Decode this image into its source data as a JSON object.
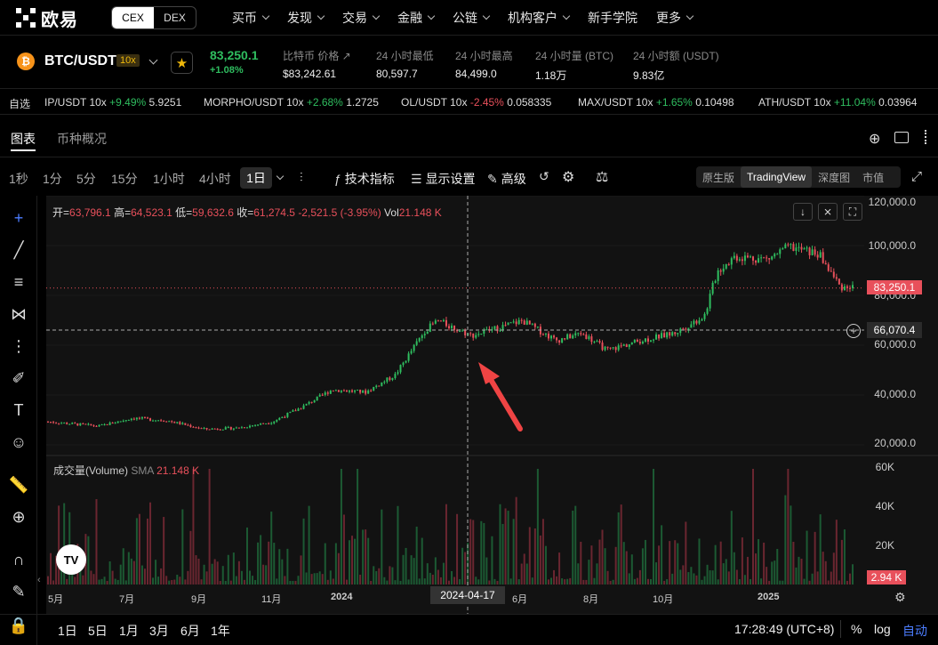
{
  "nav": {
    "logo": "欧易",
    "cex": "CEX",
    "dex": "DEX",
    "menu": [
      "买币",
      "发现",
      "交易",
      "金融",
      "公链",
      "机构客户",
      "新手学院",
      "更多"
    ],
    "menu_has_chevron": [
      true,
      true,
      true,
      true,
      true,
      true,
      false,
      true
    ]
  },
  "ticker": {
    "pair": "BTC/USDT",
    "leverage": "10x",
    "price": "83,250.1",
    "change": "+1.08%",
    "stats": [
      {
        "label": "比特币 价格",
        "value": "$83,242.61"
      },
      {
        "label": "24 小时最低",
        "value": "80,597.7"
      },
      {
        "label": "24 小时最高",
        "value": "84,499.0"
      },
      {
        "label": "24 小时量 (BTC)",
        "value": "1.18万"
      },
      {
        "label": "24 小时额 (USDT)",
        "value": "9.83亿"
      }
    ]
  },
  "scroll": {
    "fav_label": "自选",
    "items": [
      {
        "name": "IP/USDT 10x",
        "chg": "+9.49%",
        "dir": "p",
        "price": "5.9251"
      },
      {
        "name": "MORPHO/USDT 10x",
        "chg": "+2.68%",
        "dir": "p",
        "price": "1.2725"
      },
      {
        "name": "OL/USDT 10x",
        "chg": "-2.45%",
        "dir": "n",
        "price": "0.058335"
      },
      {
        "name": "MAX/USDT 10x",
        "chg": "+1.65%",
        "dir": "p",
        "price": "0.10498"
      },
      {
        "name": "ATH/USDT 10x",
        "chg": "+11.04%",
        "dir": "p",
        "price": "0.03964"
      }
    ]
  },
  "tabs": {
    "chart": "图表",
    "overview": "币种概况"
  },
  "toolbar": {
    "intervals": [
      "1秒",
      "1分",
      "5分",
      "15分",
      "1小时",
      "4小时"
    ],
    "active": "1日",
    "indicators": "技术指标",
    "display": "显示设置",
    "advanced": "高级",
    "views": [
      "原生版",
      "TradingView",
      "深度图",
      "市值"
    ],
    "active_view": "TradingView"
  },
  "ohlc": {
    "open_l": "开=",
    "open": "63,796.1",
    "high_l": "高=",
    "high": "64,523.1",
    "low_l": "低=",
    "low": "59,632.6",
    "close_l": "收=",
    "close": "61,274.5",
    "change": "-2,521.5 (-3.95%)",
    "vol_l": "Vol",
    "vol": "21.148 K"
  },
  "volume": {
    "label": "成交量(Volume)",
    "sma_l": "SMA",
    "sma": "21.148 K"
  },
  "axis": {
    "price_ticks": [
      "120,000.0",
      "100,000.0",
      "80,000.0",
      "60,000.0",
      "40,000.0",
      "20,000.0"
    ],
    "vol_ticks": [
      "60K",
      "40K",
      "20K"
    ],
    "x_ticks": [
      "5月",
      "7月",
      "9月",
      "11月",
      "2024",
      "6月",
      "8月",
      "10月",
      "2025"
    ],
    "last_price_tag": "83,250.1",
    "crosshair_price_tag": "66,070.4",
    "vol_tag": "2.94 K",
    "crosshair_date": "2024-04-17"
  },
  "bottom": {
    "ranges": [
      "1日",
      "5日",
      "1月",
      "3月",
      "6月",
      "1年"
    ],
    "time": "17:28:49 (UTC+8)",
    "pct": "%",
    "log": "log",
    "auto": "自动"
  },
  "colors": {
    "up": "#2fbd5f",
    "down": "#e8505b",
    "accent": "#f0b90b",
    "arrow": "#ef4444"
  },
  "chart_data": {
    "type": "candlestick",
    "series": [
      {
        "name": "BTC/USDT",
        "values": [
          [
            2023.3,
            29000
          ],
          [
            2023.42,
            27200
          ],
          [
            2023.5,
            30500
          ],
          [
            2023.58,
            29500
          ],
          [
            2023.67,
            26000
          ],
          [
            2023.75,
            26500
          ],
          [
            2023.83,
            29000
          ],
          [
            2023.9,
            35000
          ],
          [
            2023.97,
            42000
          ],
          [
            2024.05,
            41000
          ],
          [
            2024.12,
            48000
          ],
          [
            2024.19,
            66000
          ],
          [
            2024.22,
            70000
          ],
          [
            2024.3,
            64000
          ],
          [
            2024.36,
            67000
          ],
          [
            2024.42,
            70000
          ],
          [
            2024.5,
            62000
          ],
          [
            2024.56,
            65000
          ],
          [
            2024.62,
            58000
          ],
          [
            2024.7,
            62000
          ],
          [
            2024.78,
            65000
          ],
          [
            2024.85,
            72000
          ],
          [
            2024.88,
            90000
          ],
          [
            2024.92,
            96000
          ],
          [
            2025.0,
            95000
          ],
          [
            2025.05,
            100000
          ],
          [
            2025.12,
            97000
          ],
          [
            2025.17,
            84000
          ],
          [
            2025.2,
            83250.1
          ]
        ]
      }
    ],
    "ylim": [
      20000,
      120000
    ],
    "volume_ylim": [
      0,
      60000
    ]
  }
}
